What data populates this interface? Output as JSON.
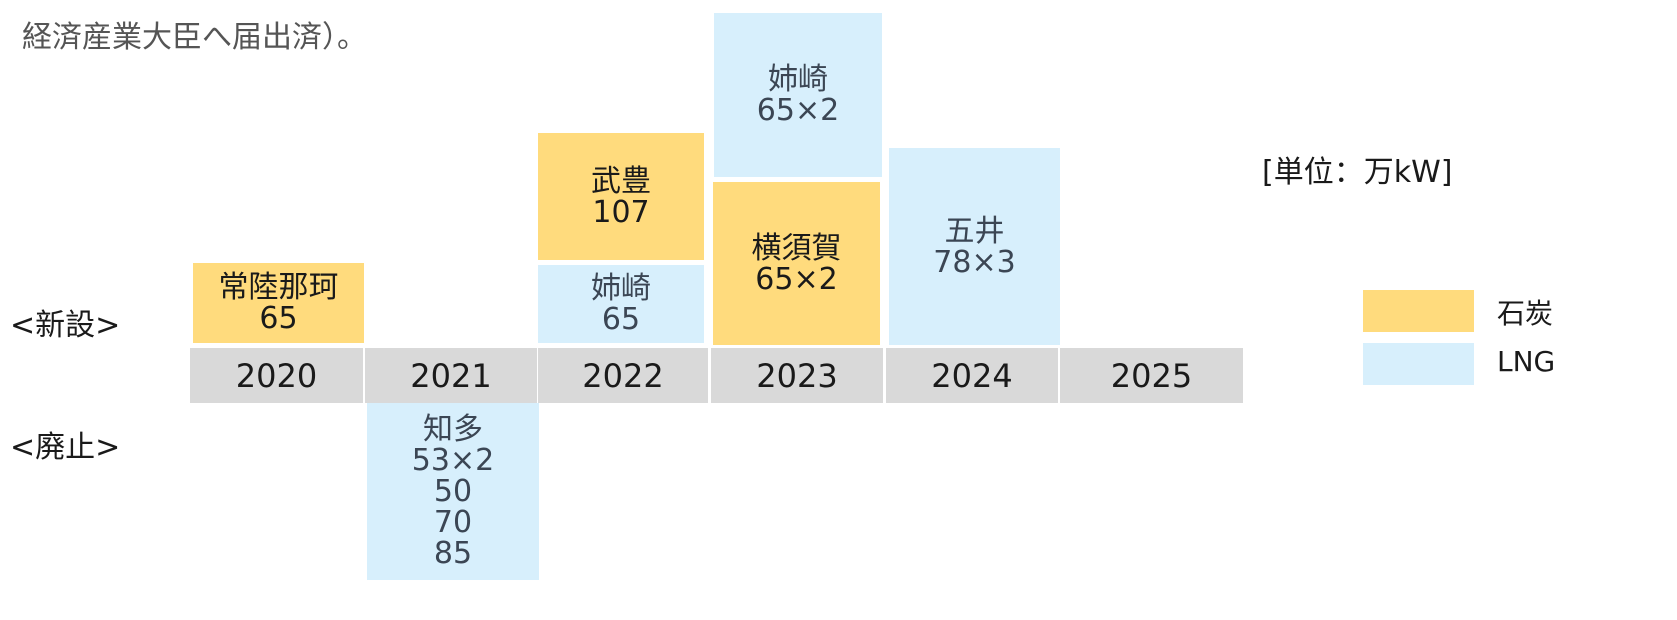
{
  "header": {
    "text": "経済産業大臣へ届出済）。"
  },
  "unit": "[単位：万kW]",
  "row_labels": {
    "new": "<新設>",
    "retired": "<廃止>"
  },
  "years": [
    "2020",
    "2021",
    "2022",
    "2023",
    "2024",
    "2025"
  ],
  "blocks": [
    {
      "fuel": "石炭",
      "lines": [
        "常陸那珂",
        "65"
      ]
    },
    {
      "fuel": "石炭",
      "lines": [
        "武豊",
        "107"
      ]
    },
    {
      "fuel": "LNG",
      "lines": [
        "姉崎",
        "65"
      ]
    },
    {
      "fuel": "LNG",
      "lines": [
        "姉崎",
        "65×2"
      ]
    },
    {
      "fuel": "石炭",
      "lines": [
        "横須賀",
        "65×2"
      ]
    },
    {
      "fuel": "LNG",
      "lines": [
        "五井",
        "78×3"
      ]
    },
    {
      "fuel": "LNG",
      "lines": [
        "知多",
        "53×2",
        "50",
        "70",
        "85"
      ]
    }
  ],
  "legend": [
    {
      "label": "石炭",
      "color": "#ffdb7d"
    },
    {
      "label": "LNG",
      "color": "#d7effc"
    }
  ]
}
